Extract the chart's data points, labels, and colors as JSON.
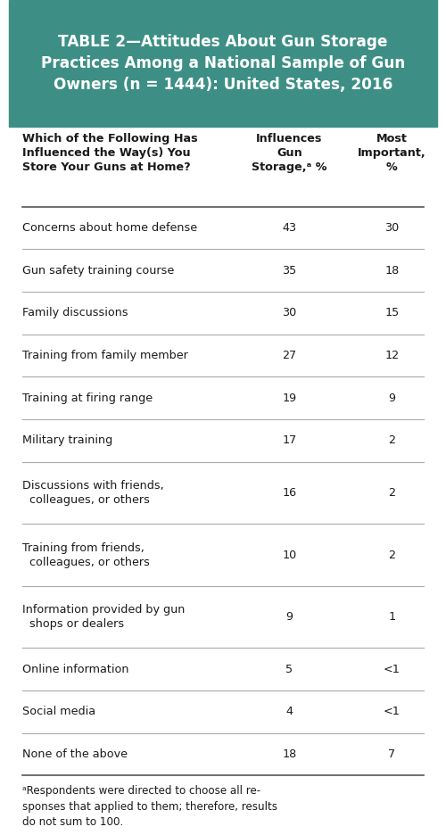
{
  "title_line1": "TABLE 2—Attitudes About Gun Storage",
  "title_line2": "Practices Among a National Sample of Gun",
  "title_line3": "Owners (n = 1444): United States, 2016",
  "title_bg_color": "#3d8f85",
  "title_text_color": "#ffffff",
  "header_col1": "Which of the Following Has\nInfluenced the Way(s) You\nStore Your Guns at Home?",
  "header_col2": "Influences\nGun\nStorage,ᵃ %",
  "header_col3": "Most\nImportant,\n%",
  "rows": [
    {
      "label": "Concerns about home defense",
      "val1": "43",
      "val2": "30",
      "multiline": false
    },
    {
      "label": "Gun safety training course",
      "val1": "35",
      "val2": "18",
      "multiline": false
    },
    {
      "label": "Family discussions",
      "val1": "30",
      "val2": "15",
      "multiline": false
    },
    {
      "label": "Training from family member",
      "val1": "27",
      "val2": "12",
      "multiline": false
    },
    {
      "label": "Training at firing range",
      "val1": "19",
      "val2": "9",
      "multiline": false
    },
    {
      "label": "Military training",
      "val1": "17",
      "val2": "2",
      "multiline": false
    },
    {
      "label": "Discussions with friends,\n  colleagues, or others",
      "val1": "16",
      "val2": "2",
      "multiline": true
    },
    {
      "label": "Training from friends,\n  colleagues, or others",
      "val1": "10",
      "val2": "2",
      "multiline": true
    },
    {
      "label": "Information provided by gun\n  shops or dealers",
      "val1": "9",
      "val2": "1",
      "multiline": true
    },
    {
      "label": "Online information",
      "val1": "5",
      "val2": "<1",
      "multiline": false
    },
    {
      "label": "Social media",
      "val1": "4",
      "val2": "<1",
      "multiline": false
    },
    {
      "label": "None of the above",
      "val1": "18",
      "val2": "7",
      "multiline": false
    }
  ],
  "footnote": "ᵃRespondents were directed to choose all re-\nsponses that applied to them; therefore, results\ndo not sum to 100.",
  "bg_color": "#ffffff",
  "text_color": "#1a1a1a",
  "line_color": "#aaaaaa",
  "thick_line_color": "#555555"
}
